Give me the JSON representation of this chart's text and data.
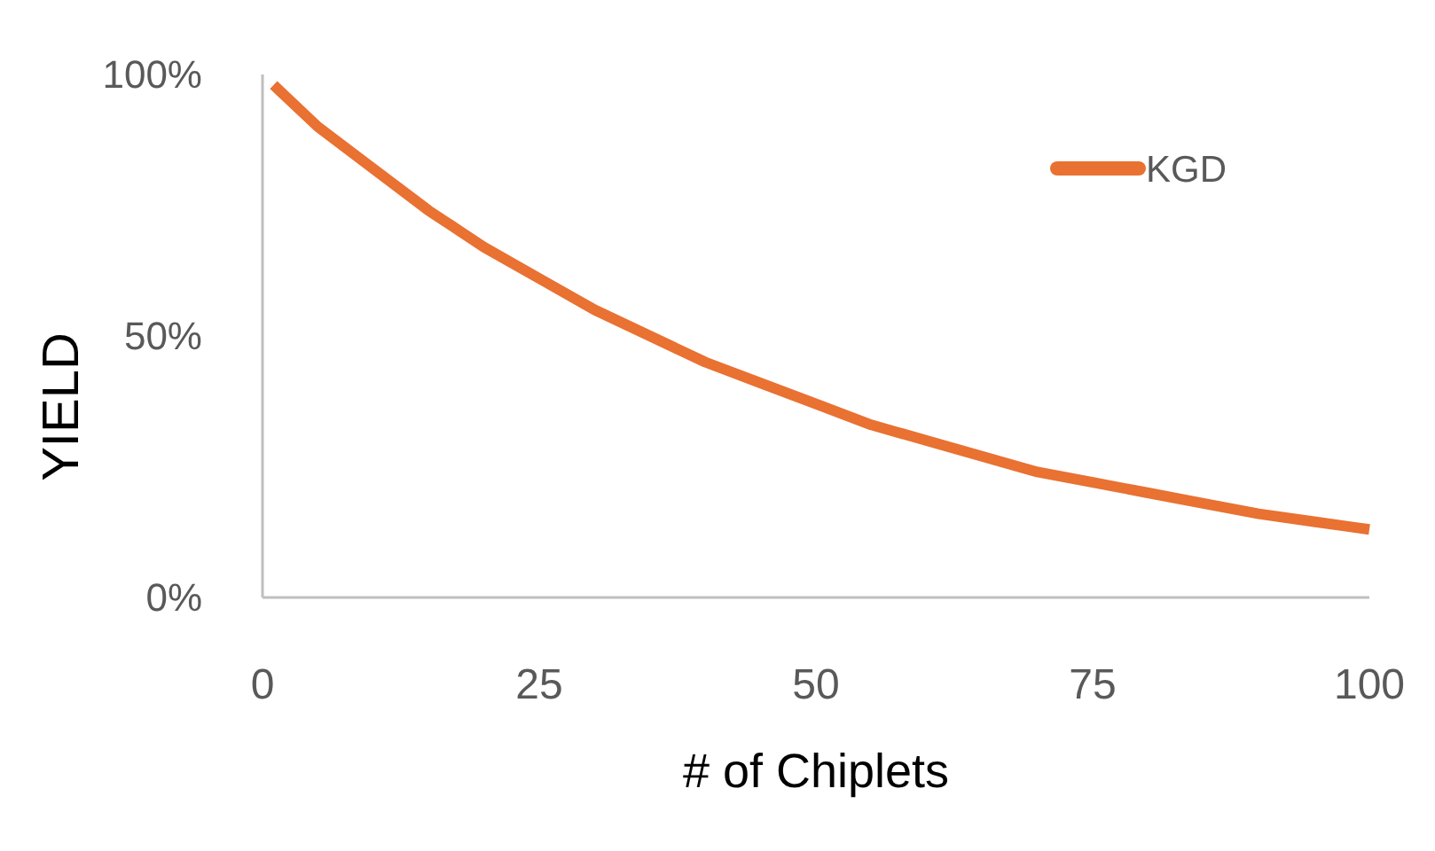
{
  "chart_data": {
    "type": "line",
    "xlabel": "# of Chiplets",
    "ylabel": "YIELD",
    "x": [
      1,
      5,
      10,
      15,
      20,
      25,
      30,
      35,
      40,
      45,
      50,
      55,
      60,
      65,
      70,
      75,
      80,
      85,
      90,
      95,
      100
    ],
    "series": [
      {
        "name": "KGD",
        "color": "#e97132",
        "values": [
          98,
          90,
          82,
          74,
          67,
          61,
          55,
          50,
          45,
          41,
          37,
          33,
          30,
          27,
          24,
          22,
          20,
          18,
          16,
          14.5,
          13
        ]
      }
    ],
    "xlim": [
      0,
      100
    ],
    "xticks": [
      0,
      25,
      50,
      75,
      100
    ],
    "ylim": [
      0,
      100
    ],
    "yticks": [
      {
        "value": 0,
        "label": "0%"
      },
      {
        "value": 50,
        "label": "50%"
      },
      {
        "value": 100,
        "label": "100%"
      }
    ],
    "grid": false,
    "legend": "top right",
    "marker": "none",
    "line_style": "solid"
  }
}
